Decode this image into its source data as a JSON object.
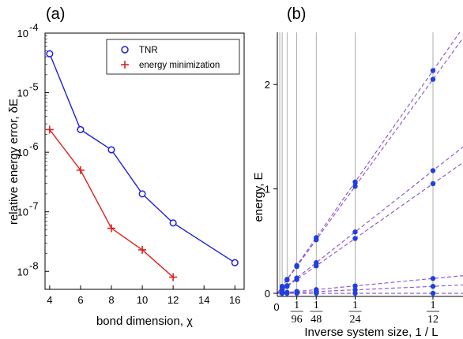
{
  "panel_a": {
    "label": "(a)",
    "legend": {
      "tnr": "TNR",
      "energy_min": "energy minimization"
    }
  },
  "panel_b": {
    "label": "(b)"
  },
  "colors": {
    "tnr": "#1f1fd6",
    "energy_min": "#e02020",
    "fit": "#8b4fc9",
    "gridline": "#999999"
  },
  "chart_data": [
    {
      "type": "line",
      "title": "",
      "xlabel": "bond dimension, χ",
      "ylabel": "relative energy error, δE",
      "yscale": "log",
      "ylim": [
        5e-09,
        0.0001
      ],
      "xlim": [
        3.7,
        16.6
      ],
      "xticks": [
        4,
        6,
        8,
        10,
        12,
        14,
        16
      ],
      "yticks": [
        {
          "exp": -8,
          "label_base": "10",
          "label_exp": "-8"
        },
        {
          "exp": -7,
          "label_base": "10",
          "label_exp": "-7"
        },
        {
          "exp": -6,
          "label_base": "10",
          "label_exp": "-6"
        },
        {
          "exp": -5,
          "label_base": "10",
          "label_exp": "-5"
        },
        {
          "exp": -4,
          "label_base": "10",
          "label_exp": "-4"
        }
      ],
      "legend_position": "top-right",
      "series": [
        {
          "name": "TNR",
          "marker": "circle",
          "x": [
            4,
            6,
            8,
            10,
            12,
            16
          ],
          "y": [
            4.5e-05,
            2.4e-06,
            1.1e-06,
            2e-07,
            6.5e-08,
            1.4e-08
          ]
        },
        {
          "name": "energy minimization",
          "marker": "plus",
          "x": [
            4,
            6,
            8,
            10,
            12
          ],
          "y": [
            2.4e-06,
            5e-07,
            5.3e-08,
            2.3e-08,
            8e-09
          ]
        }
      ]
    },
    {
      "type": "scatter",
      "title": "",
      "xlabel": "Inverse system size, 1 / L",
      "ylabel": "energy, E",
      "xlim": [
        -0.0025,
        0.0905
      ],
      "ylim": [
        -0.03,
        2.5
      ],
      "yticks": [
        0,
        1,
        2
      ],
      "xtick_zero": "0",
      "xticks_frac": [
        {
          "value": 0.0104167,
          "num": "1",
          "den": "96"
        },
        {
          "value": 0.0208333,
          "num": "1",
          "den": "48"
        },
        {
          "value": 0.0416667,
          "num": "1",
          "den": "24"
        },
        {
          "value": 0.0833333,
          "num": "1",
          "den": "12"
        }
      ],
      "vertical_lines_x": [
        0.0013021,
        0.0026042,
        0.0052083,
        0.0104167,
        0.0208333,
        0.0416667,
        0.0833333
      ],
      "point_x": [
        0.0026042,
        0.0052083,
        0.0104167,
        0.0208333,
        0.0416667,
        0.0833333
      ],
      "levels": [
        {
          "slope": 25.6
        },
        {
          "slope": 24.6
        },
        {
          "slope": 14.1
        },
        {
          "slope": 12.6
        },
        {
          "slope": 1.7
        },
        {
          "slope": 0.8
        },
        {
          "slope": 0.0
        }
      ]
    }
  ]
}
